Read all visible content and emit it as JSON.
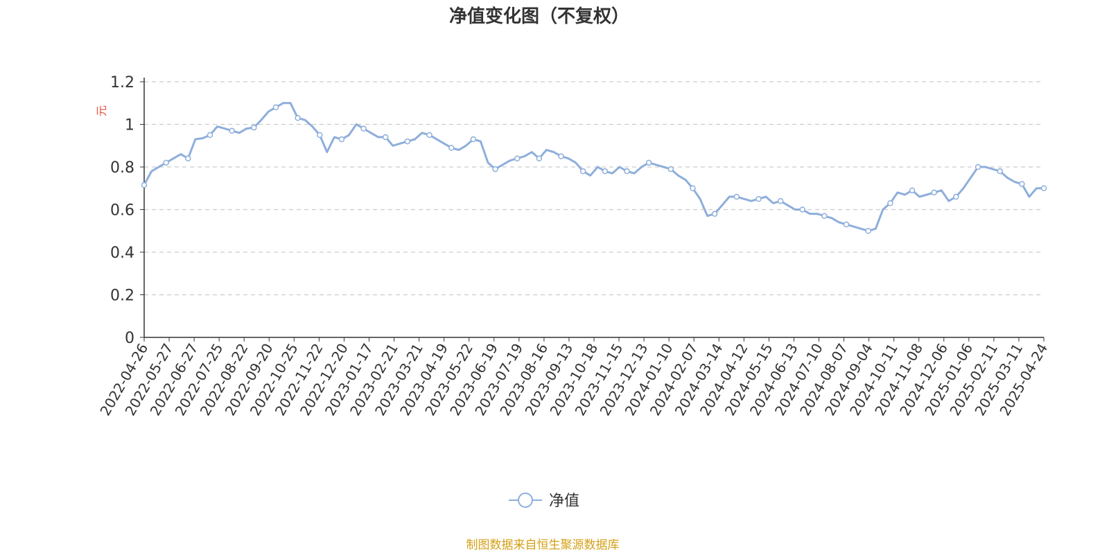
{
  "chart_data": {
    "type": "line",
    "title": "净值变化图（不复权）",
    "ylabel": "元",
    "ylim": [
      0,
      1.2
    ],
    "yticks": [
      "0",
      "0.2",
      "0.4",
      "0.6",
      "0.8",
      "1",
      "1.2"
    ],
    "grid": true,
    "legend_position": "bottom-center",
    "x_tick_labels": [
      "2022-04-26",
      "2022-05-27",
      "2022-06-27",
      "2022-07-25",
      "2022-08-22",
      "2022-09-20",
      "2022-10-25",
      "2022-11-22",
      "2022-12-20",
      "2023-01-17",
      "2023-02-21",
      "2023-03-21",
      "2023-04-19",
      "2023-05-22",
      "2023-06-19",
      "2023-07-19",
      "2023-08-16",
      "2023-09-13",
      "2023-10-18",
      "2023-11-15",
      "2023-12-13",
      "2024-01-10",
      "2024-02-07",
      "2024-03-14",
      "2024-04-12",
      "2024-05-15",
      "2024-06-13",
      "2024-07-10",
      "2024-08-07",
      "2024-09-04",
      "2024-10-11",
      "2024-11-08",
      "2024-12-06",
      "2025-01-06",
      "2025-02-11",
      "2025-03-11",
      "2025-04-24"
    ],
    "series": [
      {
        "name": "净值",
        "color": "#8eaedb",
        "values": [
          0.715,
          0.78,
          0.8,
          0.82,
          0.84,
          0.86,
          0.84,
          0.93,
          0.935,
          0.95,
          0.99,
          0.98,
          0.97,
          0.96,
          0.98,
          0.985,
          1.02,
          1.06,
          1.08,
          1.1,
          1.1,
          1.03,
          1.02,
          0.99,
          0.95,
          0.87,
          0.94,
          0.93,
          0.95,
          1.0,
          0.98,
          0.96,
          0.94,
          0.94,
          0.9,
          0.91,
          0.92,
          0.93,
          0.96,
          0.95,
          0.93,
          0.91,
          0.89,
          0.88,
          0.9,
          0.93,
          0.92,
          0.82,
          0.79,
          0.81,
          0.83,
          0.84,
          0.85,
          0.87,
          0.84,
          0.88,
          0.87,
          0.85,
          0.84,
          0.82,
          0.78,
          0.76,
          0.8,
          0.78,
          0.77,
          0.8,
          0.78,
          0.77,
          0.8,
          0.82,
          0.81,
          0.8,
          0.79,
          0.76,
          0.74,
          0.7,
          0.65,
          0.57,
          0.58,
          0.62,
          0.66,
          0.66,
          0.65,
          0.64,
          0.65,
          0.66,
          0.63,
          0.64,
          0.62,
          0.6,
          0.6,
          0.58,
          0.58,
          0.57,
          0.56,
          0.54,
          0.53,
          0.52,
          0.51,
          0.5,
          0.51,
          0.6,
          0.63,
          0.68,
          0.67,
          0.69,
          0.66,
          0.67,
          0.68,
          0.69,
          0.64,
          0.66,
          0.7,
          0.75,
          0.8,
          0.8,
          0.79,
          0.78,
          0.75,
          0.73,
          0.72,
          0.66,
          0.7,
          0.7
        ]
      }
    ]
  },
  "legend": {
    "label": "净值"
  },
  "source_note": "制图数据来自恒生聚源数据库"
}
